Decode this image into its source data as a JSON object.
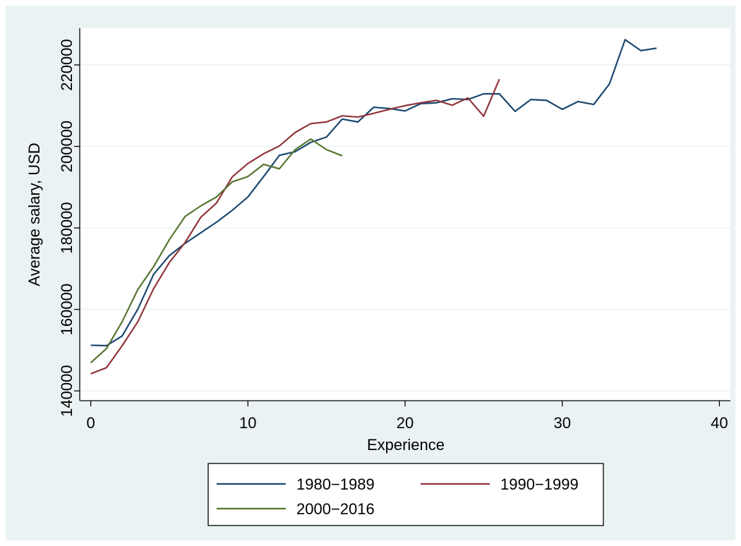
{
  "chart_data": {
    "type": "line",
    "x_label": "Experience",
    "y_label": "Average salary, USD",
    "x": [
      0,
      1,
      2,
      3,
      4,
      5,
      6,
      7,
      8,
      9,
      10,
      11,
      12,
      13,
      14,
      15,
      16,
      17,
      18,
      19,
      20,
      21,
      22,
      23,
      24,
      25,
      26,
      27,
      28,
      29,
      30,
      31,
      32,
      33,
      34,
      35,
      36
    ],
    "series": [
      {
        "name": "1980−1989",
        "color": "#1a476f",
        "values": [
          151200,
          151100,
          153500,
          160100,
          168600,
          173200,
          176200,
          178800,
          181400,
          184300,
          187600,
          192600,
          197800,
          198700,
          201000,
          202300,
          206700,
          206000,
          209600,
          209300,
          208700,
          210500,
          210700,
          211700,
          211500,
          212900,
          212900,
          208600,
          211500,
          211300,
          209100,
          211000,
          210300,
          215300,
          226200,
          223500,
          224100
        ]
      },
      {
        "name": "1990−1999",
        "color": "#90353b",
        "values": [
          144200,
          145700,
          151100,
          157000,
          165100,
          171500,
          176400,
          182600,
          186100,
          192500,
          195800,
          198200,
          200100,
          203400,
          205600,
          206000,
          207500,
          207200,
          208100,
          209100,
          210000,
          210700,
          211300,
          210100,
          211900,
          207400,
          216500,
          null,
          null,
          null,
          null,
          null,
          null,
          null,
          null,
          null,
          null
        ]
      },
      {
        "name": "2000−2016",
        "color": "#55752f",
        "values": [
          146900,
          150400,
          157000,
          164900,
          170500,
          177100,
          182800,
          185400,
          187600,
          191300,
          192600,
          195600,
          194500,
          199200,
          201800,
          199200,
          197700,
          null,
          null,
          null,
          null,
          null,
          null,
          null,
          null,
          null,
          null,
          null,
          null,
          null,
          null,
          null,
          null,
          null,
          null,
          null,
          null
        ]
      }
    ],
    "xlim": [
      -0.7,
      40.7
    ],
    "xticks": [
      0,
      10,
      20,
      30,
      40
    ],
    "ylim": [
      137600,
      229000
    ],
    "yticks": [
      140000,
      160000,
      180000,
      200000,
      220000
    ],
    "grid": true,
    "legend": "bottom"
  }
}
